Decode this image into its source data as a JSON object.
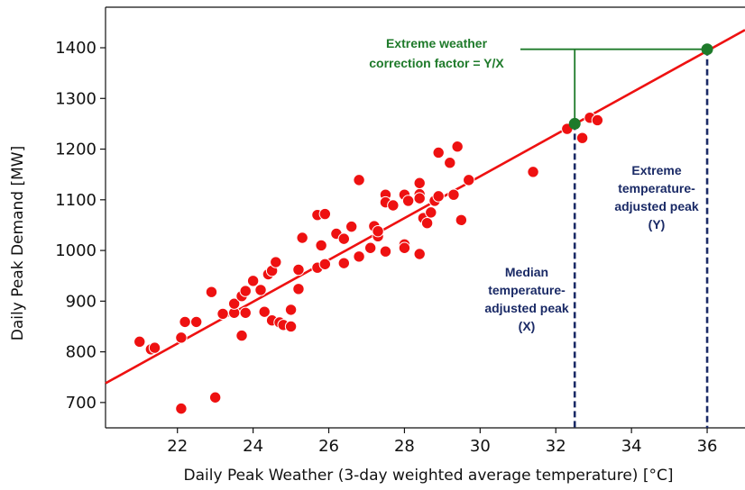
{
  "chart_data": {
    "type": "scatter",
    "xlabel": "Daily Peak Weather (3-day weighted average temperature) [°C]",
    "ylabel": "Daily Peak Demand [MW]",
    "xlim": [
      20.1,
      37
    ],
    "ylim": [
      650,
      1480
    ],
    "xticks": [
      22,
      24,
      26,
      28,
      30,
      32,
      34,
      36
    ],
    "yticks": [
      700,
      800,
      900,
      1000,
      1100,
      1200,
      1300,
      1400
    ],
    "grid": false,
    "colors": {
      "points": "#ee1111",
      "fit_line": "#ee1111",
      "markers": "#1e7a2a",
      "guides_green": "#1e7a2a",
      "guides_navy": "#1a2a66"
    },
    "fit_line": {
      "x": [
        20.1,
        37
      ],
      "y": [
        738,
        1435
      ]
    },
    "points": [
      [
        21.0,
        820
      ],
      [
        21.3,
        805
      ],
      [
        21.4,
        808
      ],
      [
        22.1,
        828
      ],
      [
        22.2,
        859
      ],
      [
        22.1,
        688
      ],
      [
        22.5,
        859
      ],
      [
        22.9,
        918
      ],
      [
        23.0,
        710
      ],
      [
        23.2,
        875
      ],
      [
        23.5,
        877
      ],
      [
        23.5,
        895
      ],
      [
        23.7,
        832
      ],
      [
        23.7,
        910
      ],
      [
        23.8,
        920
      ],
      [
        23.8,
        877
      ],
      [
        24.0,
        940
      ],
      [
        24.2,
        922
      ],
      [
        24.3,
        879
      ],
      [
        24.4,
        953
      ],
      [
        24.5,
        862
      ],
      [
        24.5,
        960
      ],
      [
        24.6,
        977
      ],
      [
        24.7,
        858
      ],
      [
        24.8,
        853
      ],
      [
        25.0,
        883
      ],
      [
        25.0,
        850
      ],
      [
        25.2,
        924
      ],
      [
        25.2,
        962
      ],
      [
        25.3,
        1025
      ],
      [
        25.7,
        966
      ],
      [
        25.7,
        1070
      ],
      [
        25.8,
        1010
      ],
      [
        25.9,
        973
      ],
      [
        25.9,
        1072
      ],
      [
        26.2,
        1033
      ],
      [
        26.4,
        975
      ],
      [
        26.4,
        1023
      ],
      [
        26.6,
        1047
      ],
      [
        26.8,
        988
      ],
      [
        26.8,
        1139
      ],
      [
        27.1,
        1005
      ],
      [
        27.2,
        1048
      ],
      [
        27.3,
        1028
      ],
      [
        27.3,
        1038
      ],
      [
        27.5,
        998
      ],
      [
        27.5,
        1110
      ],
      [
        27.5,
        1095
      ],
      [
        27.7,
        1089
      ],
      [
        28.0,
        1110
      ],
      [
        28.0,
        1012
      ],
      [
        28.0,
        1005
      ],
      [
        28.1,
        1098
      ],
      [
        28.4,
        1111
      ],
      [
        28.4,
        1133
      ],
      [
        28.4,
        1103
      ],
      [
        28.4,
        993
      ],
      [
        28.5,
        1064
      ],
      [
        28.6,
        1054
      ],
      [
        28.7,
        1075
      ],
      [
        28.8,
        1098
      ],
      [
        28.9,
        1107
      ],
      [
        28.9,
        1193
      ],
      [
        29.2,
        1173
      ],
      [
        29.3,
        1110
      ],
      [
        29.4,
        1205
      ],
      [
        29.5,
        1060
      ],
      [
        29.7,
        1139
      ],
      [
        31.4,
        1155
      ],
      [
        32.3,
        1240
      ],
      [
        32.7,
        1222
      ],
      [
        32.9,
        1262
      ],
      [
        33.1,
        1257
      ]
    ],
    "highlight_points": [
      [
        32.5,
        1250
      ],
      [
        36.0,
        1397
      ]
    ],
    "annotations": {
      "green": [
        "Extreme weather",
        "correction factor = Y/X"
      ],
      "extreme": [
        "Extreme",
        "temperature-",
        "adjusted peak",
        "(Y)"
      ],
      "median": [
        "Median",
        "temperature-",
        "adjusted peak",
        "(X)"
      ]
    }
  }
}
